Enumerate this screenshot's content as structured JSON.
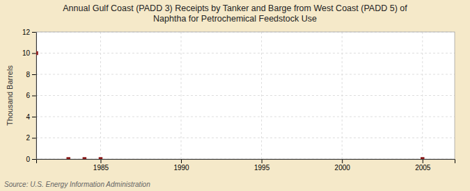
{
  "chart_data": {
    "type": "scatter",
    "title": "Annual Gulf Coast (PADD 3) Receipts by Tanker and Barge from West Coast (PADD 5) of\nNaphtha for Petrochemical Feedstock Use",
    "y_label": "Thousand Barrels",
    "source": "Source: U.S. Energy Information Administration",
    "x": [
      1981,
      1983,
      1984,
      1985,
      2005
    ],
    "values": [
      10,
      0,
      0,
      0,
      0
    ],
    "color": "#8b1a1a",
    "marker": "square",
    "xlim": [
      1981,
      2007
    ],
    "ylim": [
      0,
      12
    ],
    "xticks": [
      1985,
      1990,
      1995,
      2000,
      2005
    ],
    "yticks": [
      0,
      2,
      4,
      6,
      8,
      10,
      12
    ],
    "grid": true
  }
}
